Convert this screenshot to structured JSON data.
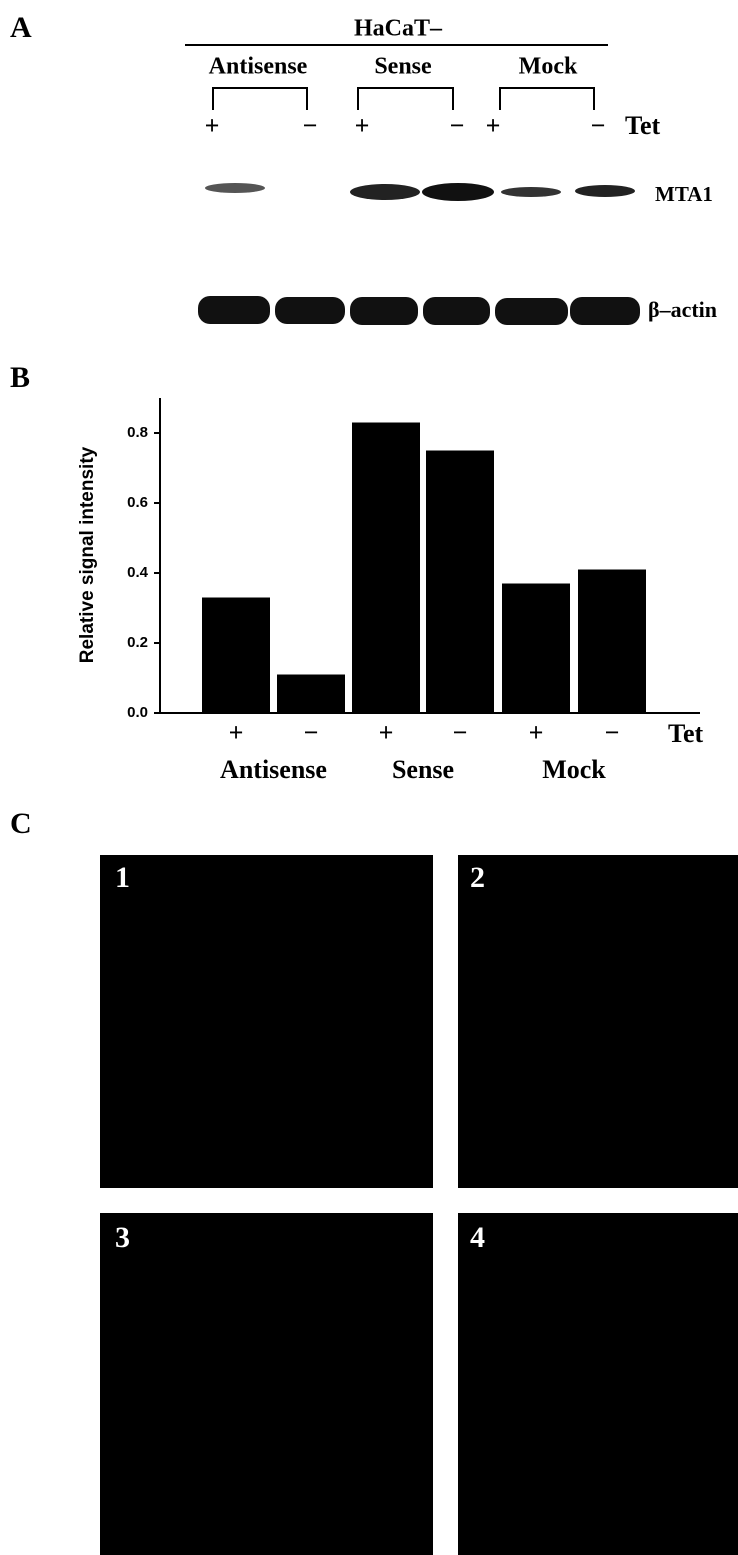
{
  "panel_a": {
    "letter": "A",
    "title": "HaCaT–",
    "groups": [
      "Antisense",
      "Sense",
      "Mock"
    ],
    "lanes": [
      "+",
      "−",
      "+",
      "−",
      "+",
      "−"
    ],
    "treatment": "Tet",
    "rows": [
      "MTA1",
      "β–actin"
    ]
  },
  "panel_b": {
    "letter": "B"
  },
  "chart_data": {
    "type": "bar",
    "y_label": "Relative signal intensity",
    "x_label": "Tet",
    "categories": [
      "+",
      "−",
      "+",
      "−",
      "+",
      "−"
    ],
    "groups": [
      "Antisense",
      "Sense",
      "Mock"
    ],
    "values": [
      0.33,
      0.11,
      0.83,
      0.75,
      0.37,
      0.41
    ],
    "color": "#000000",
    "ylim": [
      0,
      0.9
    ],
    "yticks": [
      {
        "value": 0,
        "label": "0.0"
      },
      0.2,
      0.4,
      0.6,
      0.8
    ]
  },
  "panel_c": {
    "letter": "C",
    "images": [
      "1",
      "2",
      "3",
      "4"
    ]
  }
}
